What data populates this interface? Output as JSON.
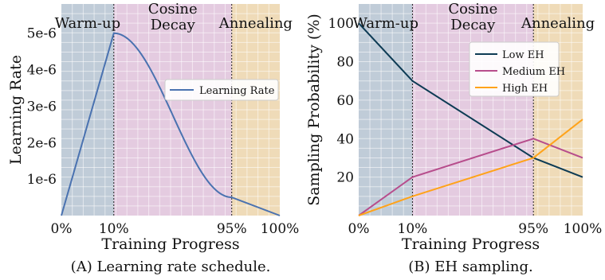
{
  "chart_data": [
    {
      "type": "line",
      "xlabel": "Training Progress",
      "ylabel": "Learning Rate",
      "caption": "(A) Learning rate schedule.",
      "x_ticks": [
        "0%",
        "10%",
        "95%",
        "100%"
      ],
      "y_ticks": [
        "1e-6",
        "2e-6",
        "3e-6",
        "4e-6",
        "5e-6"
      ],
      "y_tick_values": [
        1e-06,
        2e-06,
        3e-06,
        4e-06,
        5e-06
      ],
      "ylim": [
        0,
        5.8e-06
      ],
      "grid": true,
      "legend_position": "center-right",
      "phases": [
        {
          "label_lines": [
            "Warm-up"
          ],
          "start": "0%",
          "end": "10%",
          "color": "#c0ccd8"
        },
        {
          "label_lines": [
            "Cosine",
            "Decay"
          ],
          "start": "10%",
          "end": "95%",
          "color": "#e4cbe0"
        },
        {
          "label_lines": [
            "Annealing"
          ],
          "start": "95%",
          "end": "100%",
          "color": "#efdbb8"
        }
      ],
      "series": [
        {
          "name": "Learning Rate",
          "color": "#4a72b0",
          "x": [
            "0%",
            "10%",
            "95%",
            "100%"
          ],
          "values": [
            0,
            5e-06,
            5e-07,
            0
          ],
          "segments": [
            "linear",
            "cosine",
            "linear"
          ]
        }
      ]
    },
    {
      "type": "line",
      "xlabel": "Training Progress",
      "ylabel": "Sampling Probability (%)",
      "caption": "(B) EH sampling.",
      "x_ticks": [
        "0%",
        "10%",
        "95%",
        "100%"
      ],
      "y_ticks": [
        "20",
        "40",
        "60",
        "80",
        "100"
      ],
      "y_tick_values": [
        20,
        40,
        60,
        80,
        100
      ],
      "ylim": [
        0,
        110
      ],
      "grid": true,
      "legend_position": "top-right",
      "phases": [
        {
          "label_lines": [
            "Warm-up"
          ],
          "start": "0%",
          "end": "10%",
          "color": "#c0ccd8"
        },
        {
          "label_lines": [
            "Cosine",
            "Decay"
          ],
          "start": "10%",
          "end": "95%",
          "color": "#e4cbe0"
        },
        {
          "label_lines": [
            "Annealing"
          ],
          "start": "95%",
          "end": "100%",
          "color": "#efdbb8"
        }
      ],
      "series": [
        {
          "name": "Low EH",
          "color": "#0d3b54",
          "x": [
            "0%",
            "10%",
            "95%",
            "100%"
          ],
          "values": [
            100,
            70,
            30,
            20
          ]
        },
        {
          "name": "Medium EH",
          "color": "#b74d8c",
          "x": [
            "0%",
            "10%",
            "95%",
            "100%"
          ],
          "values": [
            0,
            20,
            40,
            30
          ]
        },
        {
          "name": "High EH",
          "color": "#ffa31a",
          "x": [
            "0%",
            "10%",
            "95%",
            "100%"
          ],
          "values": [
            0,
            10,
            30,
            50
          ]
        }
      ]
    }
  ]
}
